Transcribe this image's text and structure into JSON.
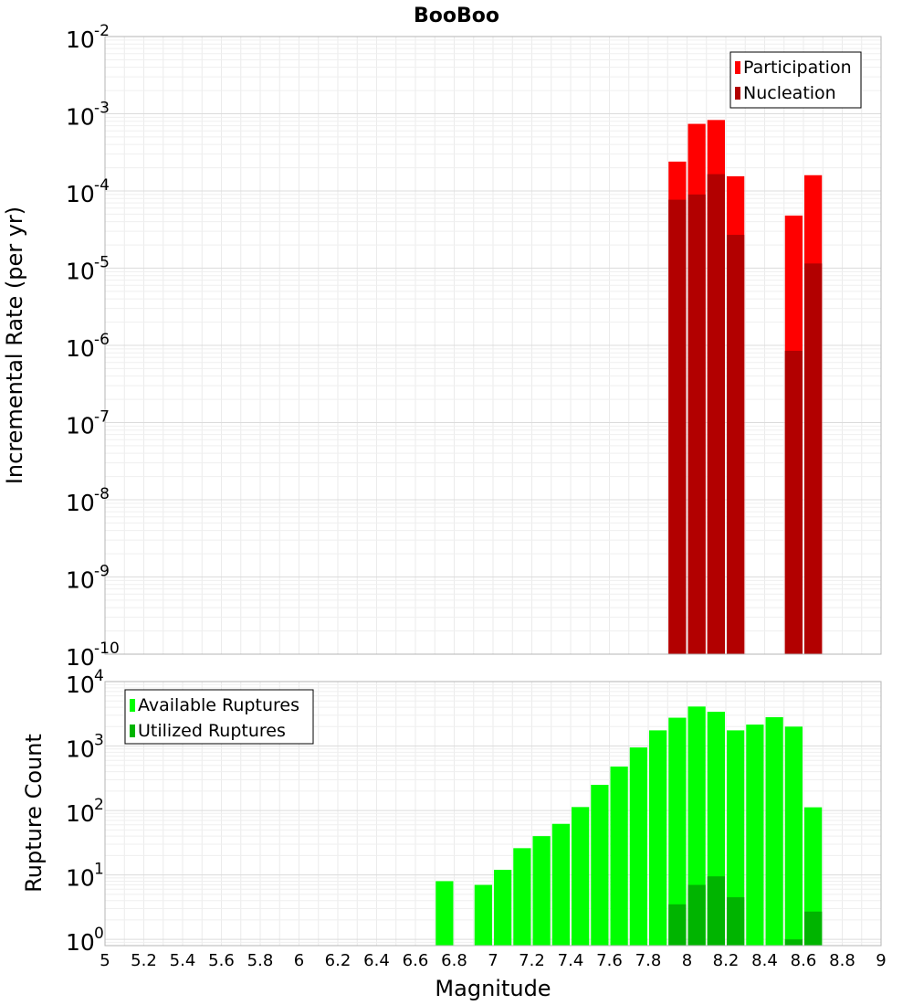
{
  "chart_data": [
    {
      "type": "bar",
      "title": "BooBoo",
      "xlabel": "",
      "ylabel": "Incremental Rate (per yr)",
      "yscale": "log",
      "ylim": [
        1e-10,
        0.01
      ],
      "xlim": [
        5,
        9
      ],
      "bar_width": 0.1,
      "y_ticks": [
        {
          "base": "10",
          "exp": "-10",
          "value": 1e-10
        },
        {
          "base": "10",
          "exp": "-9",
          "value": 1e-09
        },
        {
          "base": "10",
          "exp": "-8",
          "value": 1e-08
        },
        {
          "base": "10",
          "exp": "-7",
          "value": 1e-07
        },
        {
          "base": "10",
          "exp": "-6",
          "value": 1e-06
        },
        {
          "base": "10",
          "exp": "-5",
          "value": 1e-05
        },
        {
          "base": "10",
          "exp": "-4",
          "value": 0.0001
        },
        {
          "base": "10",
          "exp": "-3",
          "value": 0.001
        },
        {
          "base": "10",
          "exp": "-2",
          "value": 0.01
        }
      ],
      "legend_position": "top-right",
      "series": [
        {
          "name": "Participation",
          "color": "#ff0000",
          "points": [
            {
              "x": 7.95,
              "y": 0.00024
            },
            {
              "x": 8.05,
              "y": 0.00074
            },
            {
              "x": 8.15,
              "y": 0.00083
            },
            {
              "x": 8.25,
              "y": 0.000155
            },
            {
              "x": 8.55,
              "y": 4.8e-05
            },
            {
              "x": 8.65,
              "y": 0.00016
            }
          ]
        },
        {
          "name": "Nucleation",
          "color": "#b20000",
          "points": [
            {
              "x": 7.95,
              "y": 7.7e-05
            },
            {
              "x": 8.05,
              "y": 9e-05
            },
            {
              "x": 8.15,
              "y": 0.000165
            },
            {
              "x": 8.25,
              "y": 2.7e-05
            },
            {
              "x": 8.55,
              "y": 8.5e-07
            },
            {
              "x": 8.65,
              "y": 1.15e-05
            }
          ]
        }
      ]
    },
    {
      "type": "bar",
      "title": "",
      "xlabel": "Magnitude",
      "ylabel": "Rupture Count",
      "yscale": "log",
      "ylim": [
        0.8,
        10000
      ],
      "xlim": [
        5,
        9
      ],
      "bar_width": 0.1,
      "x_ticks": [
        "5",
        "5.2",
        "5.4",
        "5.6",
        "5.8",
        "6",
        "6.2",
        "6.4",
        "6.6",
        "6.8",
        "7",
        "7.2",
        "7.4",
        "7.6",
        "7.8",
        "8",
        "8.2",
        "8.4",
        "8.6",
        "8.8",
        "9"
      ],
      "y_ticks": [
        {
          "base": "10",
          "exp": "0",
          "value": 1
        },
        {
          "base": "10",
          "exp": "1",
          "value": 10
        },
        {
          "base": "10",
          "exp": "2",
          "value": 100
        },
        {
          "base": "10",
          "exp": "3",
          "value": 1000
        },
        {
          "base": "10",
          "exp": "4",
          "value": 10000
        }
      ],
      "legend_position": "top-left",
      "series": [
        {
          "name": "Available Ruptures",
          "color": "#00ff00",
          "points": [
            {
              "x": 6.75,
              "y": 8
            },
            {
              "x": 6.95,
              "y": 7
            },
            {
              "x": 7.05,
              "y": 12
            },
            {
              "x": 7.15,
              "y": 26
            },
            {
              "x": 7.25,
              "y": 40
            },
            {
              "x": 7.35,
              "y": 62
            },
            {
              "x": 7.45,
              "y": 113
            },
            {
              "x": 7.55,
              "y": 250
            },
            {
              "x": 7.65,
              "y": 480
            },
            {
              "x": 7.75,
              "y": 950
            },
            {
              "x": 7.85,
              "y": 1750
            },
            {
              "x": 7.95,
              "y": 2750
            },
            {
              "x": 8.05,
              "y": 4100
            },
            {
              "x": 8.15,
              "y": 3400
            },
            {
              "x": 8.25,
              "y": 1750
            },
            {
              "x": 8.35,
              "y": 2150
            },
            {
              "x": 8.45,
              "y": 2800
            },
            {
              "x": 8.55,
              "y": 2000
            },
            {
              "x": 8.65,
              "y": 112
            }
          ]
        },
        {
          "name": "Utilized Ruptures",
          "color": "#00b400",
          "points": [
            {
              "x": 7.95,
              "y": 3.5
            },
            {
              "x": 8.05,
              "y": 7
            },
            {
              "x": 8.15,
              "y": 9.5
            },
            {
              "x": 8.25,
              "y": 4.5
            },
            {
              "x": 8.55,
              "y": 1
            },
            {
              "x": 8.65,
              "y": 2.7
            }
          ]
        }
      ]
    }
  ]
}
